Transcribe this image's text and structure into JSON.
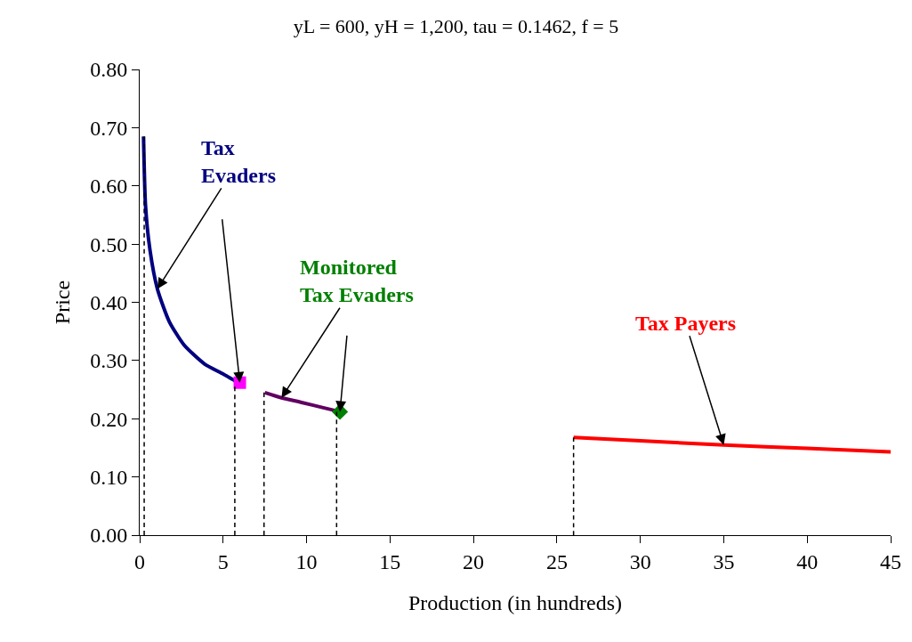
{
  "chart_data": {
    "type": "line",
    "title": "yL = 600, yH = 1,200, tau = 0.1462, f = 5",
    "xlabel": "Production (in hundreds)",
    "ylabel": "Price",
    "series": [
      {
        "color": "#000080",
        "line_style": "solid",
        "x": [
          0.23,
          0.35,
          0.62,
          1.06,
          1.77,
          2.65,
          3.89,
          5.0,
          5.66,
          6.0
        ],
        "values": [
          0.685,
          0.566,
          0.489,
          0.423,
          0.367,
          0.327,
          0.294,
          0.277,
          0.266,
          0.262
        ]
      },
      {
        "color": "#600060",
        "line_style": "solid",
        "x": [
          7.5,
          8.5,
          9.7,
          11.0,
          12.0
        ],
        "values": [
          0.245,
          0.236,
          0.228,
          0.219,
          0.212
        ]
      },
      {
        "color": "#ff0000",
        "line_style": "solid",
        "x": [
          26,
          30,
          35,
          40,
          45
        ],
        "values": [
          0.168,
          0.162,
          0.155,
          0.149,
          0.143
        ]
      },
      {
        "type": "scatter",
        "color": "#ff00ff",
        "marker": "square",
        "x": [
          6.0
        ],
        "values": [
          0.262
        ]
      },
      {
        "type": "scatter",
        "color": "#008000",
        "marker": "diamond",
        "x": [
          12.0
        ],
        "values": [
          0.212
        ]
      },
      {
        "color": "#000000",
        "line_style": "dashed",
        "x": [
          0.27,
          0.27
        ],
        "values": [
          0,
          0.685
        ]
      },
      {
        "color": "#000000",
        "line_style": "dashed",
        "x": [
          5.7,
          5.7
        ],
        "values": [
          0,
          0.255
        ]
      },
      {
        "color": "#000000",
        "line_style": "dashed",
        "x": [
          7.45,
          7.45
        ],
        "values": [
          0,
          0.245
        ]
      },
      {
        "color": "#000000",
        "line_style": "dashed",
        "x": [
          11.8,
          11.8
        ],
        "values": [
          0,
          0.212
        ]
      },
      {
        "color": "#000000",
        "line_style": "dashed",
        "x": [
          26,
          26
        ],
        "values": [
          0,
          0.168
        ]
      }
    ],
    "annotations": [
      {
        "text": "Tax\nEvaders",
        "x": 1.06,
        "y": 0.423
      },
      {
        "text": "Monitored\nTax Evaders",
        "x": 8.5,
        "y": 0.236
      },
      {
        "text": "Tax Payers",
        "x": 35,
        "y": 0.155
      }
    ],
    "xlim": [
      0,
      45
    ],
    "xticks": [
      0,
      5,
      10,
      15,
      20,
      25,
      30,
      35,
      40,
      45
    ],
    "ylim": [
      0,
      0.8
    ],
    "yticks": [
      {
        "value": 0,
        "label": "0.00"
      },
      {
        "value": 0.1,
        "label": "0.10"
      },
      {
        "value": 0.2,
        "label": "0.20"
      },
      {
        "value": 0.3,
        "label": "0.30"
      },
      {
        "value": 0.4,
        "label": "0.40"
      },
      {
        "value": 0.5,
        "label": "0.50"
      },
      {
        "value": 0.6,
        "label": "0.60"
      },
      {
        "value": 0.7,
        "label": "0.70"
      },
      {
        "value": 0.8,
        "label": "0.80"
      }
    ]
  }
}
